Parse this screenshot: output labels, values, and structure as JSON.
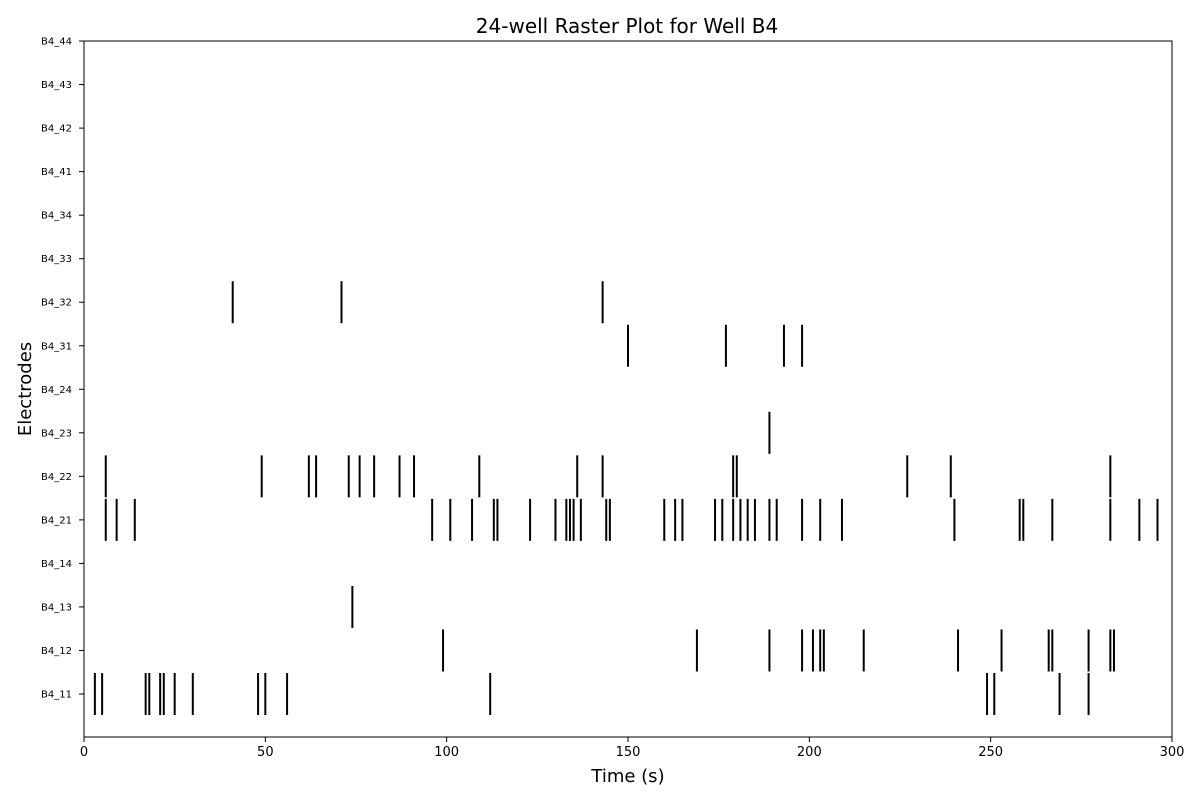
{
  "chart_data": {
    "type": "raster",
    "title": "24-well Raster Plot for Well B4",
    "xlabel": "Time (s)",
    "ylabel": "Electrodes",
    "xlim": [
      0,
      300
    ],
    "xticks": [
      0,
      50,
      100,
      150,
      200,
      250,
      300
    ],
    "grid": false,
    "legend": "none",
    "colors": {
      "spike": "#000000",
      "axis": "#000000",
      "background": "#ffffff"
    },
    "electrodes": [
      "B4_11",
      "B4_12",
      "B4_13",
      "B4_14",
      "B4_21",
      "B4_22",
      "B4_23",
      "B4_24",
      "B4_31",
      "B4_32",
      "B4_33",
      "B4_34",
      "B4_41",
      "B4_42",
      "B4_43",
      "B4_44"
    ],
    "spikes": {
      "B4_11": [
        3,
        5,
        17,
        18,
        21,
        22,
        25,
        30,
        48,
        50,
        56,
        112,
        249,
        251,
        269,
        277
      ],
      "B4_12": [
        99,
        169,
        189,
        198,
        201,
        203,
        204,
        215,
        241,
        253,
        266,
        267,
        277,
        283,
        284
      ],
      "B4_13": [
        74
      ],
      "B4_14": [],
      "B4_21": [
        6,
        9,
        14,
        96,
        101,
        107,
        113,
        114,
        123,
        130,
        133,
        134,
        135,
        137,
        144,
        145,
        160,
        163,
        165,
        174,
        176,
        179,
        181,
        183,
        185,
        189,
        191,
        198,
        203,
        209,
        240,
        258,
        259,
        267,
        283,
        291,
        296
      ],
      "B4_22": [
        6,
        49,
        62,
        64,
        73,
        76,
        80,
        87,
        91,
        109,
        136,
        143,
        179,
        180,
        227,
        239,
        283
      ],
      "B4_23": [
        189
      ],
      "B4_24": [],
      "B4_31": [
        150,
        177,
        193,
        198
      ],
      "B4_32": [
        41,
        71,
        143
      ],
      "B4_33": [],
      "B4_34": [],
      "B4_41": [],
      "B4_42": [],
      "B4_43": [],
      "B4_44": []
    }
  }
}
